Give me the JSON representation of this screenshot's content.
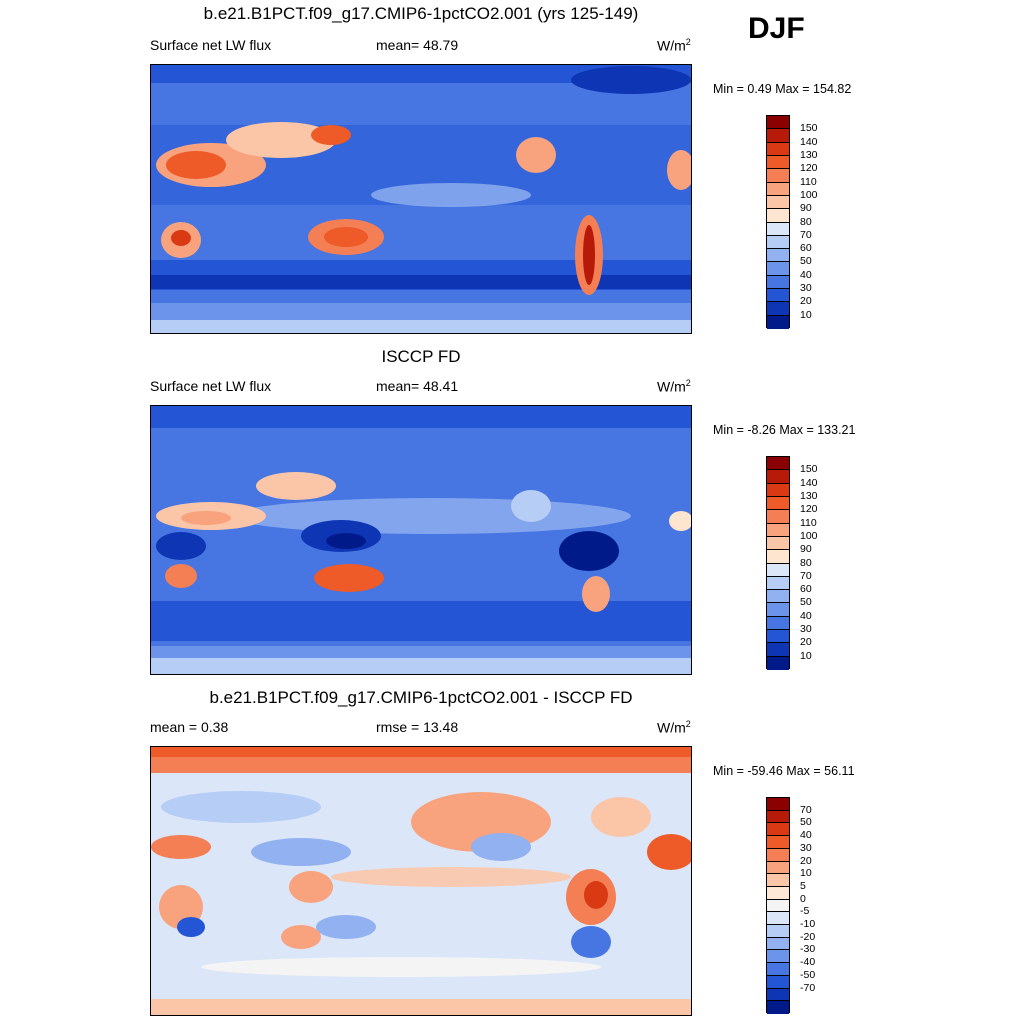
{
  "season": "DJF",
  "panels": [
    {
      "title": "b.e21.B1PCT.f09_g17.CMIP6-1pctCO2.001 (yrs 125-149)",
      "left_label": "Surface net LW flux",
      "center_label": "mean=  48.79",
      "units_base": "W/m",
      "units_exp": "2",
      "minmax": "Min =   0.49 Max = 154.82",
      "colorbar": {
        "colors": [
          "#8b0000",
          "#b81a0a",
          "#d93a14",
          "#ee5a28",
          "#f47f55",
          "#f8a37e",
          "#fbc6a8",
          "#fde5d0",
          "#dbe6f8",
          "#b6cdf5",
          "#91b1f0",
          "#6c94ea",
          "#4775e2",
          "#2455d4",
          "#0e36b4",
          "#001a8a"
        ],
        "labels": [
          "150",
          "140",
          "130",
          "120",
          "110",
          "100",
          "90",
          "80",
          "70",
          "60",
          "50",
          "40",
          "30",
          "20",
          "10"
        ]
      }
    },
    {
      "title": "ISCCP FD",
      "left_label": "Surface net LW flux",
      "center_label": "mean=  48.41",
      "units_base": "W/m",
      "units_exp": "2",
      "minmax": "Min =  -8.26 Max = 133.21",
      "colorbar": {
        "colors": [
          "#8b0000",
          "#b81a0a",
          "#d93a14",
          "#ee5a28",
          "#f47f55",
          "#f8a37e",
          "#fbc6a8",
          "#fde5d0",
          "#dbe6f8",
          "#b6cdf5",
          "#91b1f0",
          "#6c94ea",
          "#4775e2",
          "#2455d4",
          "#0e36b4",
          "#001a8a"
        ],
        "labels": [
          "150",
          "140",
          "130",
          "120",
          "110",
          "100",
          "90",
          "80",
          "70",
          "60",
          "50",
          "40",
          "30",
          "20",
          "10"
        ]
      }
    },
    {
      "title": "b.e21.B1PCT.f09_g17.CMIP6-1pctCO2.001 - ISCCP FD",
      "left_label": "mean =   0.38",
      "center_label": "rmse =  13.48",
      "units_base": "W/m",
      "units_exp": "2",
      "minmax": "Min = -59.46 Max =  56.11",
      "colorbar": {
        "colors": [
          "#8b0000",
          "#b81a0a",
          "#d93a14",
          "#ee5a28",
          "#f47f55",
          "#f8a37e",
          "#fbc6a8",
          "#fde8d8",
          "#f4f4f4",
          "#dbe6f8",
          "#b6cdf5",
          "#91b1f0",
          "#6c94ea",
          "#4775e2",
          "#2455d4",
          "#0e36b4",
          "#001a8a"
        ],
        "labels": [
          "70",
          "50",
          "40",
          "30",
          "20",
          "10",
          "5",
          "0",
          "-5",
          "-10",
          "-20",
          "-30",
          "-40",
          "-50",
          "-70"
        ]
      }
    }
  ]
}
